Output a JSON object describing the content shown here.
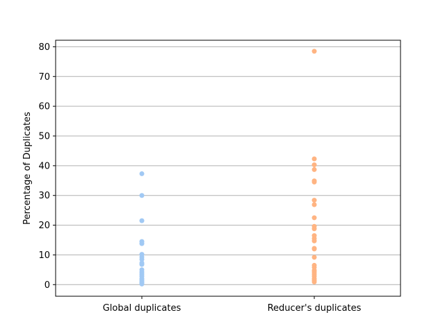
{
  "chart_data": {
    "type": "scatter",
    "title": "",
    "xlabel": "",
    "ylabel": "Percentage of Duplicates",
    "categories": [
      "Global duplicates",
      "Reducer's duplicates"
    ],
    "ylim": [
      -3.9,
      82.2
    ],
    "yticks": [
      0,
      10,
      20,
      30,
      40,
      50,
      60,
      70,
      80
    ],
    "grid": "horizontal",
    "legend": "none",
    "series": [
      {
        "category": "Global duplicates",
        "color": "#a1c9f4",
        "values": [
          37.3,
          30.0,
          21.5,
          14.5,
          13.8,
          10.2,
          9.3,
          8.5,
          7.3,
          6.8,
          5.0,
          4.2,
          3.5,
          2.8,
          2.0,
          1.5,
          1.0,
          0.6,
          0.2
        ]
      },
      {
        "category": "Reducer's duplicates",
        "color": "#ffb482",
        "values": [
          78.5,
          42.3,
          40.3,
          38.7,
          34.9,
          34.5,
          28.4,
          26.9,
          22.5,
          19.6,
          18.8,
          16.5,
          15.5,
          14.7,
          12.2,
          12.0,
          9.2,
          6.5,
          5.8,
          4.8,
          4.2,
          3.5,
          2.8,
          2.0,
          1.4,
          0.9
        ]
      }
    ]
  }
}
